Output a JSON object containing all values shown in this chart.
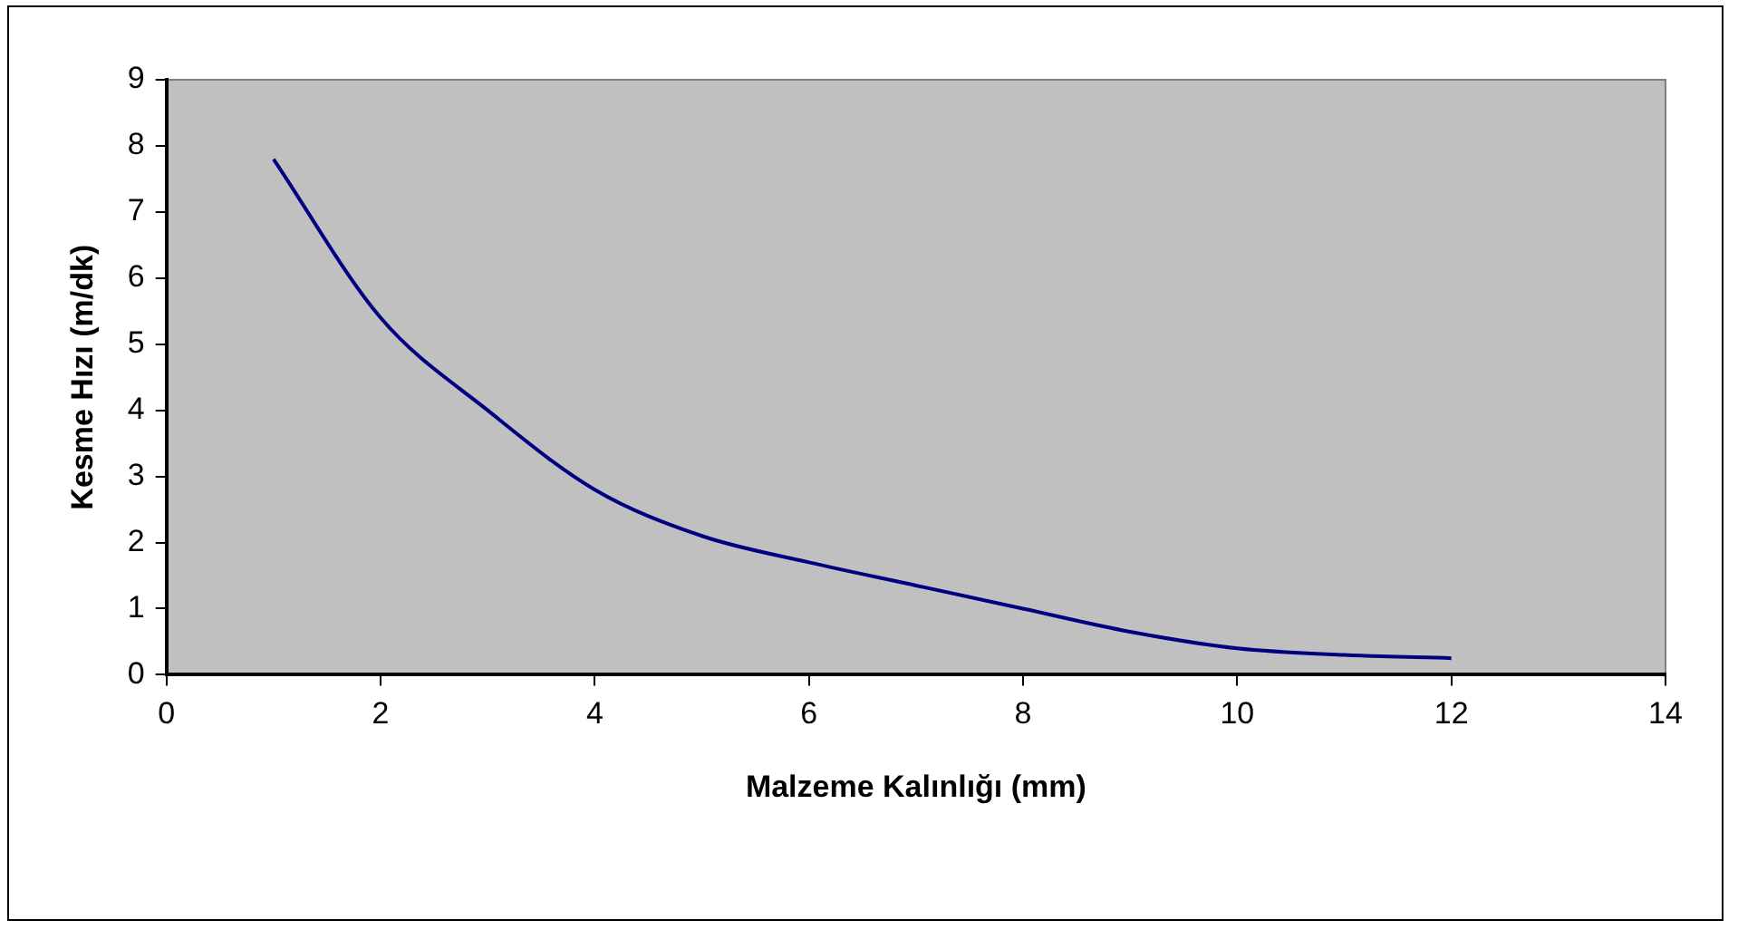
{
  "chart_data": {
    "type": "line",
    "xlabel": "Malzeme Kalınlığı (mm)",
    "ylabel": "Kesme Hızı (m/dk)",
    "x": [
      1,
      2,
      3,
      4,
      5,
      6,
      7,
      8,
      9,
      10,
      11,
      12
    ],
    "series": [
      {
        "color": "#000080",
        "values": [
          7.8,
          5.4,
          4.0,
          2.8,
          2.1,
          1.7,
          1.35,
          1.0,
          0.65,
          0.4,
          0.3,
          0.25
        ]
      }
    ],
    "xlim": [
      0,
      14
    ],
    "xticks": [
      0,
      2,
      4,
      6,
      8,
      10,
      12,
      14
    ],
    "ylim": [
      0,
      9
    ],
    "yticks": [
      0,
      1,
      2,
      3,
      4,
      5,
      6,
      7,
      8,
      9
    ],
    "grid": false,
    "legend": false,
    "marker": "none",
    "line_style": "solid"
  }
}
